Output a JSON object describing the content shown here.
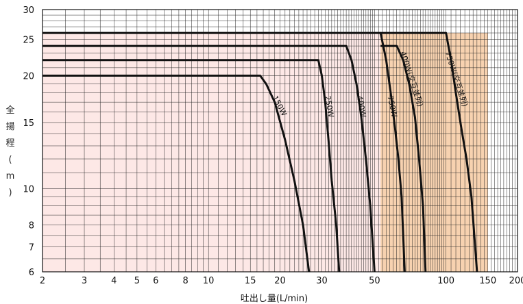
{
  "chart_data": {
    "type": "line",
    "title": "",
    "xlabel": "吐出し量(L/min)",
    "ylabel": "全揚程(m)",
    "x_scale": "log",
    "y_scale": "log",
    "xlim": [
      2,
      200
    ],
    "ylim": [
      6,
      30
    ],
    "x_ticks": [
      2,
      3,
      4,
      5,
      6,
      8,
      10,
      15,
      20,
      30,
      50,
      100,
      150,
      200
    ],
    "y_ticks": [
      6,
      7,
      8,
      10,
      15,
      20,
      25,
      30
    ],
    "shaded_regions": [
      {
        "x": [
          2,
          53
        ],
        "y_max": 26,
        "color": "#fde8e6"
      },
      {
        "x": [
          53,
          100
        ],
        "y_max": 26,
        "color": "#f7d2b0"
      },
      {
        "x": [
          100,
          150
        ],
        "y_max": 26,
        "color": "#f7d2b0"
      }
    ],
    "series": [
      {
        "name": "150W",
        "points": [
          [
            2,
            20
          ],
          [
            16.5,
            20
          ],
          [
            17.5,
            19
          ],
          [
            19,
            17
          ],
          [
            21,
            13.5
          ],
          [
            23,
            10.5
          ],
          [
            25,
            8
          ],
          [
            26.5,
            6
          ]
        ]
      },
      {
        "name": "250W",
        "points": [
          [
            2,
            22
          ],
          [
            29,
            22
          ],
          [
            30,
            20
          ],
          [
            31,
            17
          ],
          [
            32,
            13.5
          ],
          [
            33,
            10.5
          ],
          [
            34.5,
            8
          ],
          [
            35.5,
            6
          ]
        ]
      },
      {
        "name": "400W",
        "points": [
          [
            2,
            24
          ],
          [
            38,
            24
          ],
          [
            40,
            22
          ],
          [
            42,
            19
          ],
          [
            44,
            15.5
          ],
          [
            46,
            12
          ],
          [
            48,
            9
          ],
          [
            50,
            6
          ]
        ]
      },
      {
        "name": "750W",
        "points": [
          [
            2,
            26
          ],
          [
            53,
            26
          ],
          [
            56,
            22
          ],
          [
            58.5,
            18
          ],
          [
            61,
            14.5
          ],
          [
            63,
            12
          ],
          [
            65,
            9.5
          ],
          [
            67,
            6
          ]
        ]
      },
      {
        "name": "400W(交互並列)",
        "points": [
          [
            53,
            24
          ],
          [
            62,
            24
          ],
          [
            66,
            22
          ],
          [
            70,
            19
          ],
          [
            74,
            15.5
          ],
          [
            77,
            12
          ],
          [
            80,
            9
          ],
          [
            82,
            6
          ]
        ]
      },
      {
        "name": "750W(交互並列)",
        "points": [
          [
            53,
            26
          ],
          [
            100,
            26
          ],
          [
            105,
            22
          ],
          [
            110,
            18
          ],
          [
            116,
            14.5
          ],
          [
            122,
            12
          ],
          [
            128,
            9.5
          ],
          [
            135,
            6
          ]
        ]
      }
    ],
    "annotations": [
      "150W",
      "250W",
      "400W",
      "750W",
      "400W(交互並列)",
      "750W(交互並列)"
    ],
    "colors": {
      "line": "#111111",
      "grid": "#222222",
      "bg": "#ffffff"
    },
    "grid": true
  }
}
